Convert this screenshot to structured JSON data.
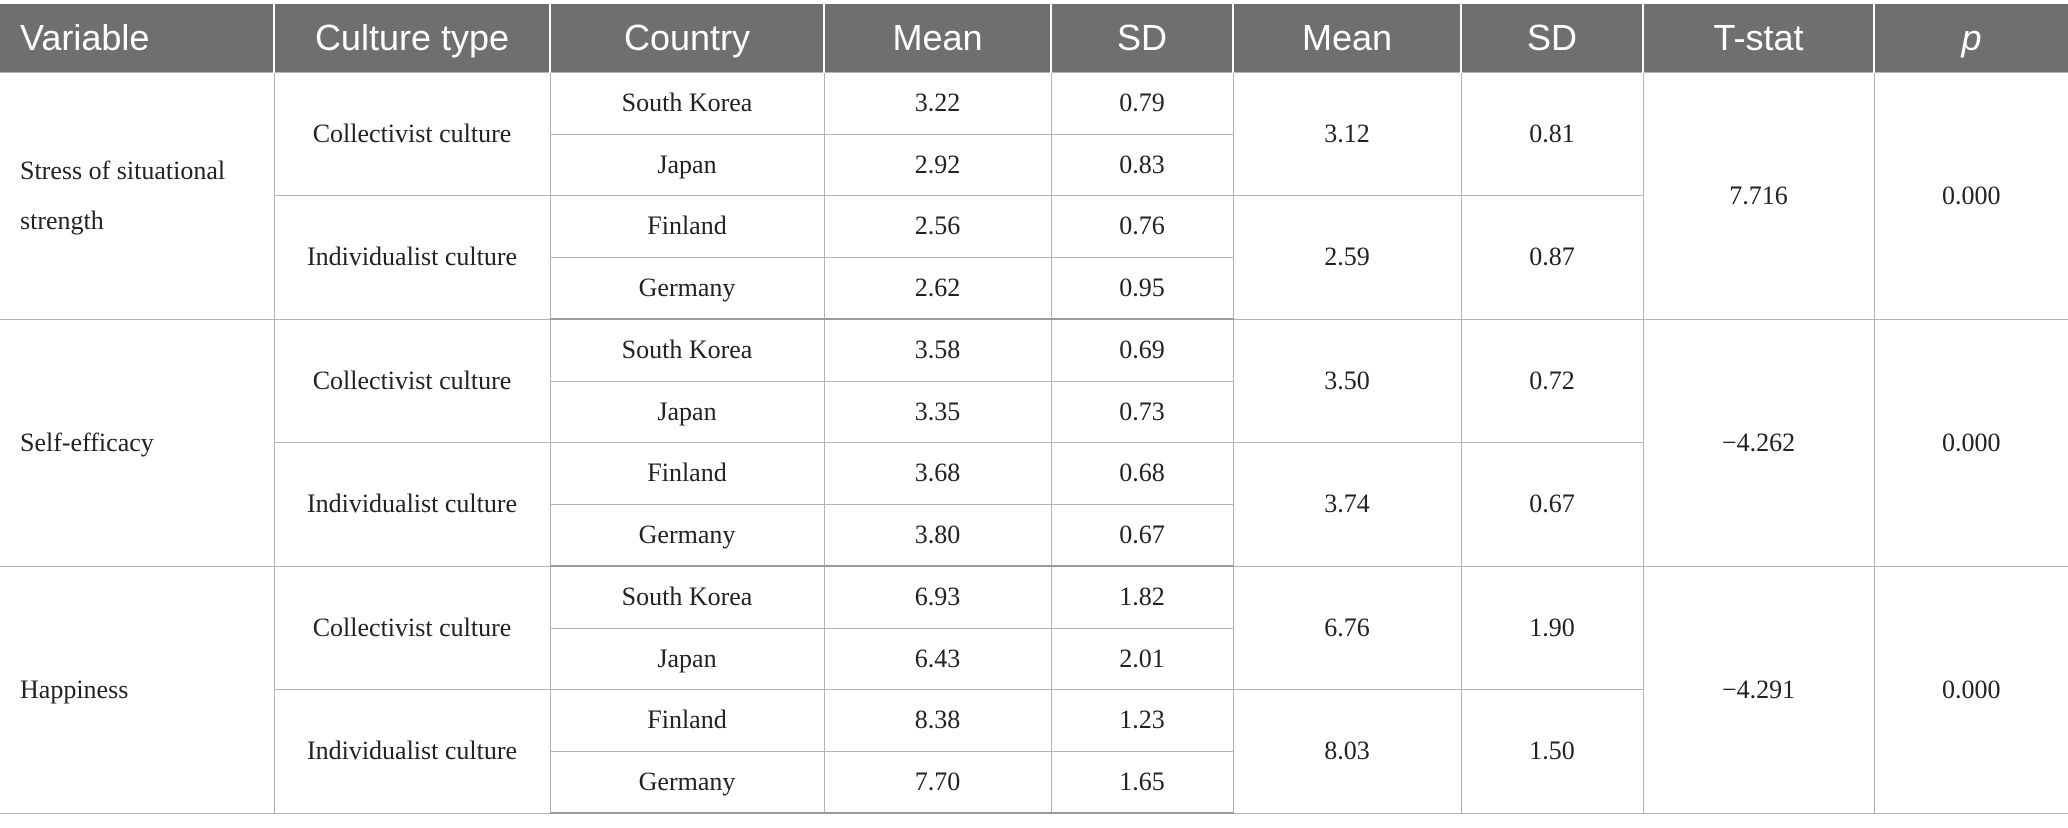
{
  "headers": {
    "variable": "Variable",
    "culture_type": "Culture type",
    "country": "Country",
    "mean": "Mean",
    "sd": "SD",
    "group_mean": "Mean",
    "group_sd": "SD",
    "t_stat": "T-stat",
    "p": "p"
  },
  "groups": [
    {
      "variable": "Stress of situational strength",
      "t_stat": "7.716",
      "p": "0.000",
      "cultures": [
        {
          "type": "Collectivist culture",
          "mean": "3.12",
          "sd": "0.81",
          "countries": [
            {
              "country": "South Korea",
              "mean": "3.22",
              "sd": "0.79"
            },
            {
              "country": "Japan",
              "mean": "2.92",
              "sd": "0.83"
            }
          ]
        },
        {
          "type": "Individualist culture",
          "mean": "2.59",
          "sd": "0.87",
          "countries": [
            {
              "country": "Finland",
              "mean": "2.56",
              "sd": "0.76"
            },
            {
              "country": "Germany",
              "mean": "2.62",
              "sd": "0.95"
            }
          ]
        }
      ]
    },
    {
      "variable": "Self-efficacy",
      "t_stat": "−4.262",
      "p": "0.000",
      "cultures": [
        {
          "type": "Collectivist culture",
          "mean": "3.50",
          "sd": "0.72",
          "countries": [
            {
              "country": "South Korea",
              "mean": "3.58",
              "sd": "0.69"
            },
            {
              "country": "Japan",
              "mean": "3.35",
              "sd": "0.73"
            }
          ]
        },
        {
          "type": "Individualist culture",
          "mean": "3.74",
          "sd": "0.67",
          "countries": [
            {
              "country": "Finland",
              "mean": "3.68",
              "sd": "0.68"
            },
            {
              "country": "Germany",
              "mean": "3.80",
              "sd": "0.67"
            }
          ]
        }
      ]
    },
    {
      "variable": "Happiness",
      "t_stat": "−4.291",
      "p": "0.000",
      "cultures": [
        {
          "type": "Collectivist culture",
          "mean": "6.76",
          "sd": "1.90",
          "countries": [
            {
              "country": "South Korea",
              "mean": "6.93",
              "sd": "1.82"
            },
            {
              "country": "Japan",
              "mean": "6.43",
              "sd": "2.01"
            }
          ]
        },
        {
          "type": "Individualist culture",
          "mean": "8.03",
          "sd": "1.50",
          "countries": [
            {
              "country": "Finland",
              "mean": "8.38",
              "sd": "1.23"
            },
            {
              "country": "Germany",
              "mean": "7.70",
              "sd": "1.65"
            }
          ]
        }
      ]
    }
  ]
}
